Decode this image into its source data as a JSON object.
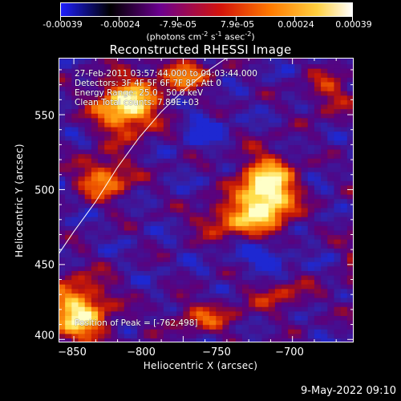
{
  "colorbar": {
    "tick_labels": [
      "-0.00039",
      "-0.00024",
      "-7.9e-05",
      "7.9e-05",
      "0.00024",
      "0.00039"
    ],
    "units": {
      "prefix": "(photons cm",
      "exp1": "-2",
      "mid1": " s",
      "exp2": "-1",
      "mid2": " asec",
      "exp3": "-2",
      "suffix": ")"
    },
    "range": [
      -0.00039,
      0.00039
    ],
    "colors": [
      "#1e1eff",
      "#000000",
      "#6b008f",
      "#d4140a",
      "#ff7a00",
      "#ffd040",
      "#ffffff"
    ]
  },
  "annotations": {
    "time": "27-Feb-2011 03:57:44.000 to 04:03:44.000",
    "detectors": "Detectors: 3F 4F 5F 6F 7F 8F, Att 0",
    "energy": "Energy Range: 25.0 - 50.0 keV",
    "clean": "Clean     Total counts: 7.89E+03",
    "peak": "Position of Peak = [-762,498]"
  },
  "footer": {
    "date": "9-May-2022 09:10"
  },
  "chart_data": {
    "type": "heatmap",
    "title": "Reconstructed RHESSI Image",
    "xlabel": "Heliocentric X (arcsec)",
    "ylabel": "Heliocentric Y (arcsec)",
    "xlim": [
      -857,
      -722
    ],
    "ylim": [
      398,
      588
    ],
    "xticks": [
      -850,
      -800,
      -750,
      -700
    ],
    "yticks": [
      400,
      450,
      500,
      550
    ],
    "xtick_labels": [
      "−850",
      "−800",
      "−750",
      "−700"
    ],
    "ytick_labels": [
      "400",
      "450",
      "500",
      "550"
    ],
    "peak": [
      -762,
      498
    ],
    "sources": [
      {
        "x": -762,
        "y": 498,
        "sx": 9,
        "sy": 16,
        "amp": 1.0
      },
      {
        "x": -826,
        "y": 556,
        "sx": 10,
        "sy": 13,
        "amp": 0.85
      },
      {
        "x": -700,
        "y": 510,
        "sx": 8,
        "sy": 20,
        "amp": 0.8
      },
      {
        "x": -848,
        "y": 418,
        "sx": 10,
        "sy": 16,
        "amp": 0.75
      },
      {
        "x": -836,
        "y": 508,
        "sx": 9,
        "sy": 10,
        "amp": 0.55
      },
      {
        "x": -800,
        "y": 577,
        "sx": 9,
        "sy": 8,
        "amp": 0.5
      },
      {
        "x": -780,
        "y": 480,
        "sx": 10,
        "sy": 8,
        "amp": 0.45
      },
      {
        "x": -712,
        "y": 450,
        "sx": 8,
        "sy": 25,
        "amp": 0.45
      },
      {
        "x": -790,
        "y": 415,
        "sx": 12,
        "sy": 8,
        "amp": 0.35
      },
      {
        "x": -755,
        "y": 430,
        "sx": 10,
        "sy": 8,
        "amp": 0.3
      },
      {
        "x": -733,
        "y": 565,
        "sx": 8,
        "sy": 12,
        "amp": 0.3
      },
      {
        "x": -790,
        "y": 540,
        "sx": 6,
        "sy": 6,
        "amp": -0.35
      },
      {
        "x": -762,
        "y": 455,
        "sx": 8,
        "sy": 6,
        "amp": -0.35
      }
    ],
    "limb": [
      [
        -857,
        457
      ],
      [
        -850,
        472
      ],
      [
        -840,
        492
      ],
      [
        -830,
        515
      ],
      [
        -820,
        535
      ],
      [
        -810,
        552
      ],
      [
        -800,
        566
      ],
      [
        -790,
        578
      ],
      [
        -780,
        588
      ]
    ]
  }
}
